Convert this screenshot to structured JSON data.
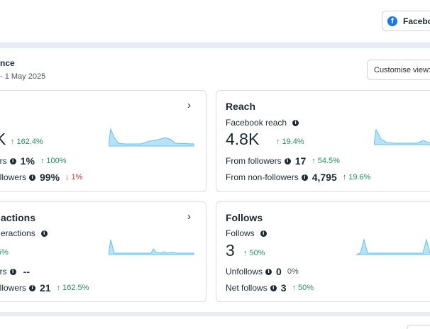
{
  "header": {
    "platform_button": {
      "label": "Facebook",
      "icon": "facebook-icon"
    }
  },
  "panel": {
    "title": "nce",
    "date_range": "- 1 May 2025",
    "customise_label": "Customise view:"
  },
  "cards": {
    "views": {
      "title": "",
      "big_value": "K",
      "big_change": "162.4%",
      "rows": [
        {
          "label": "ers",
          "value": "1%",
          "change": "100%",
          "direction": "up"
        },
        {
          "label": "ollowers",
          "value": "99%",
          "change": "1%",
          "direction": "down"
        }
      ]
    },
    "reach": {
      "title": "Reach",
      "metric_label": "Facebook reach",
      "big_value": "4.8K",
      "big_change": "19.4%",
      "rows": [
        {
          "label": "From followers",
          "value": "17",
          "change": "54.5%",
          "direction": "up"
        },
        {
          "label": "From non-followers",
          "value": "4,795",
          "change": "19.6%",
          "direction": "up"
        }
      ]
    },
    "interactions": {
      "title": "actions",
      "metric_label": "eractions",
      "big_change": ".5%",
      "rows": [
        {
          "label": "ers",
          "value": "--"
        },
        {
          "label": "ollowers",
          "value": "21",
          "change": "162.5%",
          "direction": "up"
        }
      ]
    },
    "follows": {
      "title": "Follows",
      "metric_label": "Follows",
      "big_value": "3",
      "big_change": "50%",
      "rows": [
        {
          "label": "Unfollows",
          "value": "0",
          "change": "0%",
          "direction": "neutral"
        },
        {
          "label": "Net follows",
          "value": "3",
          "change": "50%",
          "direction": "up"
        }
      ]
    }
  },
  "colors": {
    "up": "#1d8f5a",
    "down": "#c0392b",
    "sparkline_fill": "#b8e3f7",
    "sparkline_stroke": "#5ec4f0",
    "facebook_blue": "#1877f2"
  }
}
